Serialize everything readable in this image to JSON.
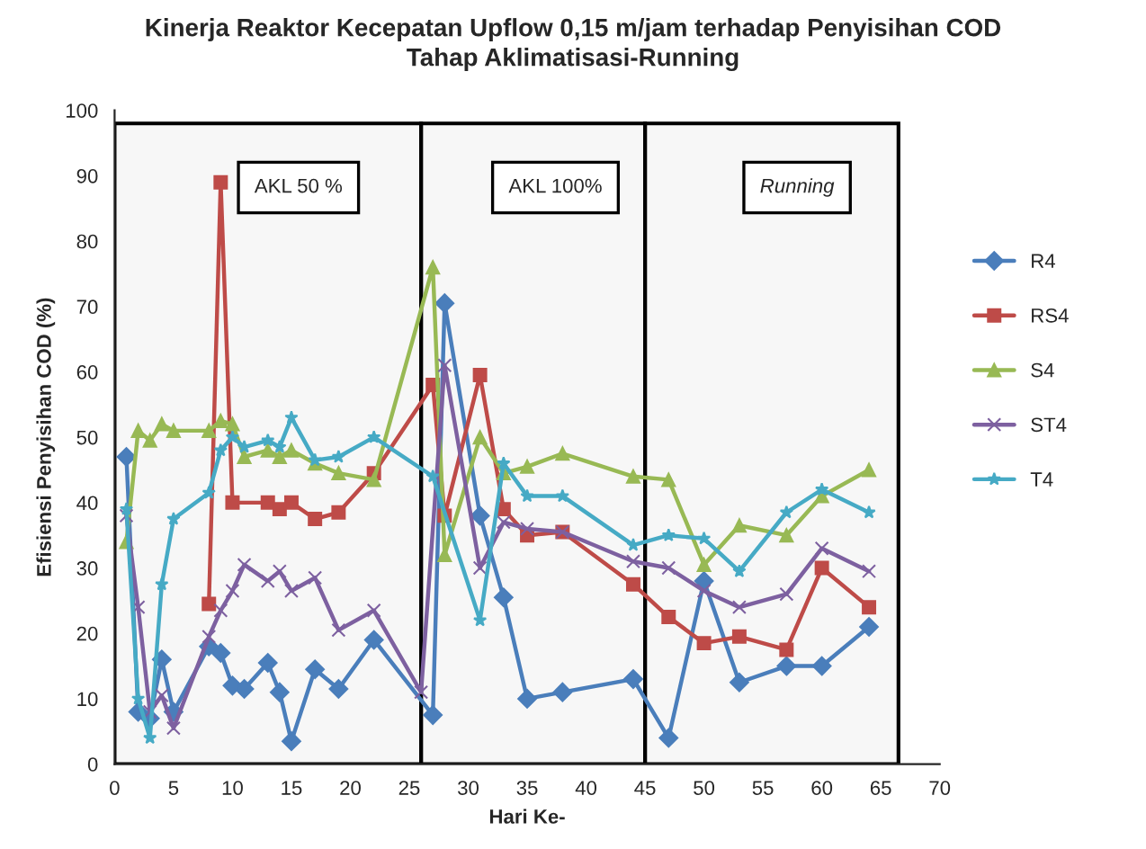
{
  "chart_data": {
    "type": "line",
    "title": "Kinerja Reaktor Kecepatan Upflow 0,15 m/jam terhadap Penyisihan COD",
    "subtitle": "Tahap Aklimatisasi-Running",
    "xlabel": "Hari Ke-",
    "ylabel": "Efisiensi Penyisihan COD (%)",
    "xlim": [
      0,
      70
    ],
    "xticks": [
      0,
      5,
      10,
      15,
      20,
      25,
      30,
      35,
      40,
      45,
      50,
      55,
      60,
      65,
      70
    ],
    "ylim": [
      0,
      100
    ],
    "yticks": [
      0,
      10,
      20,
      30,
      40,
      50,
      60,
      70,
      80,
      90,
      100
    ],
    "grid": false,
    "legend": "right",
    "line_style": "solid",
    "bands": [
      {
        "axis": "x",
        "from": 0,
        "to": 26,
        "label": "AKL 50 %",
        "color": "#000000"
      },
      {
        "axis": "x",
        "from": 26,
        "to": 45,
        "label": "AKL 100%",
        "color": "#000000"
      },
      {
        "axis": "x",
        "from": 45,
        "to": 66.5,
        "label": "Running",
        "color": "#000000"
      }
    ],
    "series": [
      {
        "name": "R4",
        "color": "#4a7ebb",
        "marker": "diamond",
        "x": [
          1,
          2,
          3,
          4,
          5,
          8,
          9,
          10,
          11,
          13,
          14,
          15,
          17,
          19,
          22,
          27,
          28,
          31,
          33,
          35,
          38,
          44,
          47,
          50,
          53,
          57,
          60,
          64
        ],
        "values": [
          47,
          8,
          7,
          16,
          8,
          18,
          17,
          12,
          11.5,
          15.5,
          11,
          3.5,
          14.5,
          11.5,
          19,
          7.5,
          70.5,
          38,
          25.5,
          10,
          11,
          13,
          4,
          28,
          12.5,
          15,
          15,
          21
        ]
      },
      {
        "name": "RS4",
        "color": "#be4b48",
        "marker": "square",
        "x": [
          8,
          9,
          10,
          13,
          14,
          15,
          17,
          19,
          22,
          27,
          28,
          31,
          33,
          35,
          38,
          44,
          47,
          50,
          53,
          57,
          60,
          64
        ],
        "values": [
          24.5,
          89,
          40,
          40,
          39,
          40,
          37.5,
          38.5,
          44.5,
          58,
          38,
          59.5,
          39,
          35,
          35.5,
          27.5,
          22.5,
          18.5,
          19.5,
          17.5,
          30,
          24
        ]
      },
      {
        "name": "S4",
        "color": "#98b954",
        "marker": "triangle",
        "x": [
          1,
          2,
          3,
          4,
          5,
          8,
          9,
          10,
          11,
          13,
          14,
          15,
          17,
          19,
          22,
          27,
          28,
          31,
          33,
          35,
          38,
          44,
          47,
          50,
          53,
          57,
          60,
          64
        ],
        "values": [
          34,
          51,
          49.5,
          52,
          51,
          51,
          52.5,
          52,
          47,
          48,
          47,
          48,
          46,
          44.5,
          43.5,
          76,
          32,
          50,
          44.5,
          45.5,
          47.5,
          44,
          43.5,
          30.5,
          36.5,
          35,
          41,
          45
        ]
      },
      {
        "name": "ST4",
        "color": "#7d60a0",
        "marker": "cross",
        "x": [
          1,
          2,
          3,
          4,
          5,
          8,
          9,
          10,
          11,
          13,
          14,
          15,
          17,
          19,
          22,
          26,
          28,
          31,
          33,
          35,
          38,
          44,
          47,
          50,
          53,
          57,
          60,
          64
        ],
        "values": [
          38,
          24,
          8,
          10.5,
          5.5,
          19.5,
          23.5,
          26.5,
          30.5,
          28,
          29.5,
          26.5,
          28.5,
          20.5,
          23.5,
          11,
          61,
          30,
          37,
          36,
          35.5,
          31,
          30,
          26.5,
          24,
          26,
          33,
          29.5
        ]
      },
      {
        "name": "T4",
        "color": "#46aac5",
        "marker": "star",
        "x": [
          1,
          2,
          3,
          4,
          5,
          8,
          9,
          10,
          11,
          13,
          14,
          15,
          17,
          19,
          22,
          27,
          31,
          33,
          35,
          38,
          44,
          47,
          50,
          53,
          57,
          60,
          64
        ],
        "values": [
          39,
          10,
          4,
          27.5,
          37.5,
          41.5,
          48,
          50,
          48.5,
          49.5,
          48.5,
          53,
          46.5,
          47,
          50,
          44,
          22,
          46,
          41,
          41,
          33.5,
          35,
          34.5,
          29.5,
          38.5,
          42,
          38.5
        ]
      }
    ]
  }
}
